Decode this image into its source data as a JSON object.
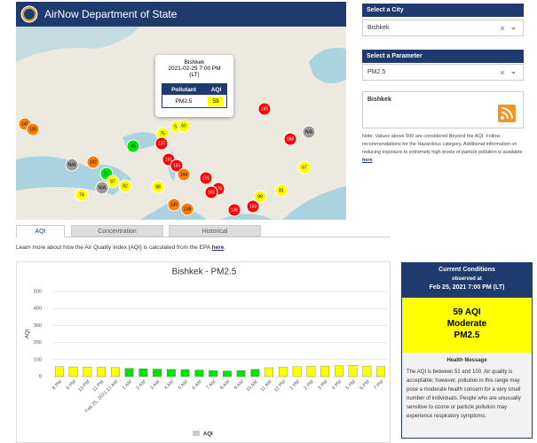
{
  "header": {
    "title": "AirNow Department of State"
  },
  "map": {
    "markers": [
      {
        "label": "141",
        "color": "#ff7e00"
      },
      {
        "label": "135",
        "color": "#ff7e00"
      },
      {
        "label": "N/A",
        "color": "#999999"
      },
      {
        "label": "102",
        "color": "#ff7e00"
      },
      {
        "label": "31",
        "color": "#00e400"
      },
      {
        "label": "87",
        "color": "#ffff00"
      },
      {
        "label": "N/A",
        "color": "#999999"
      },
      {
        "label": "82",
        "color": "#ffff00"
      },
      {
        "label": "74",
        "color": "#ffff00"
      },
      {
        "label": "45",
        "color": "#00e400"
      },
      {
        "label": "75",
        "color": "#ffff00"
      },
      {
        "label": "55",
        "color": "#ffff00"
      },
      {
        "label": "60",
        "color": "#ffff00"
      },
      {
        "label": "137",
        "color": "#ff0000"
      },
      {
        "label": "161",
        "color": "#ff0000"
      },
      {
        "label": "155",
        "color": "#ff0000"
      },
      {
        "label": "144",
        "color": "#ff7e00"
      },
      {
        "label": "88",
        "color": "#ffff00"
      },
      {
        "label": "145",
        "color": "#ff7e00"
      },
      {
        "label": "138",
        "color": "#ff7e00"
      },
      {
        "label": "161",
        "color": "#ff0000"
      },
      {
        "label": "176",
        "color": "#ff0000"
      },
      {
        "label": "165",
        "color": "#ff0000"
      },
      {
        "label": "136",
        "color": "#ff0000"
      },
      {
        "label": "183",
        "color": "#ff0000"
      },
      {
        "label": "99",
        "color": "#ffff00"
      },
      {
        "label": "81",
        "color": "#ffff00"
      },
      {
        "label": "67",
        "color": "#ffff00"
      },
      {
        "label": "188",
        "color": "#ff0000"
      },
      {
        "label": "N/A",
        "color": "#999999"
      },
      {
        "label": "165",
        "color": "#ff0000"
      }
    ],
    "popup": {
      "city": "Bishkek",
      "time": "2021-02-25 7:00 PM (LT)",
      "headers": [
        "Pollutant",
        "AQI"
      ],
      "pollutant": "PM2.5",
      "aqi": "59"
    }
  },
  "sidebar": {
    "city_label": "Select a City",
    "city": "Bishkek",
    "parameter_label": "Select a Parameter",
    "parameter": "PM2.5",
    "feed_title": "Bishkek",
    "note": "Note: Values above 500 are considered Beyond the AQI. Follow recommendations for the Hazardous category. Additional information on reducing exposure to extremely high levels of particle pollution is available ",
    "note_link": "here",
    "note_end": "."
  },
  "tabs": [
    "AQI",
    "Concentration",
    "Historical"
  ],
  "learn_more": {
    "text": "Learn more about how the Air Quality Index [AQI] is calculated from the EPA ",
    "link": "here",
    "end": "."
  },
  "chart_data": {
    "type": "bar",
    "title": "Bishkek - PM2.5",
    "y_label": "AQI",
    "categories": [
      "8 PM",
      "9 PM",
      "10 PM",
      "11 PM",
      "Feb 25, 2021 12 AM",
      "1 AM",
      "2 AM",
      "3 AM",
      "4 AM",
      "5 AM",
      "6 AM",
      "7 AM",
      "8 AM",
      "9 AM",
      "10 AM",
      "11 AM",
      "12 PM",
      "1 PM",
      "2 PM",
      "3 PM",
      "4 PM",
      "5 PM",
      "6 PM",
      "7 PM"
    ],
    "series": [
      {
        "name": "AQI",
        "legend_color": "#cccccc",
        "values": [
          58,
          57,
          56,
          55,
          53,
          48,
          46,
          44,
          42,
          40,
          38,
          35,
          33,
          35,
          42,
          52,
          55,
          58,
          60,
          62,
          64,
          66,
          62,
          59
        ],
        "colors": [
          "#ffff00",
          "#ffff00",
          "#ffff00",
          "#ffff00",
          "#ffff00",
          "#00e400",
          "#00e400",
          "#00e400",
          "#00e400",
          "#00e400",
          "#00e400",
          "#00e400",
          "#00e400",
          "#00e400",
          "#00e400",
          "#ffff00",
          "#ffff00",
          "#ffff00",
          "#ffff00",
          "#ffff00",
          "#ffff00",
          "#ffff00",
          "#ffff00",
          "#ffff00"
        ]
      }
    ],
    "ylim": [
      0,
      500
    ],
    "yticks": [
      0,
      100,
      200,
      300,
      400,
      500
    ],
    "grid": true
  },
  "current": {
    "title": "Current Conditions",
    "observed": "observed at",
    "time": "Feb 25, 2021 7:00 PM (LT)",
    "aqi_text": "59 AQI",
    "category": "Moderate",
    "pollutant": "PM2.5",
    "health_title": "Health Message",
    "health_text": "The AQI is between 51 and 100. Air quality is acceptable; however, pollution in this range may pose a moderate health concern for a very small number of individuals. People who are unusually sensitive to ozone or particle pollution may experience respiratory symptoms."
  }
}
